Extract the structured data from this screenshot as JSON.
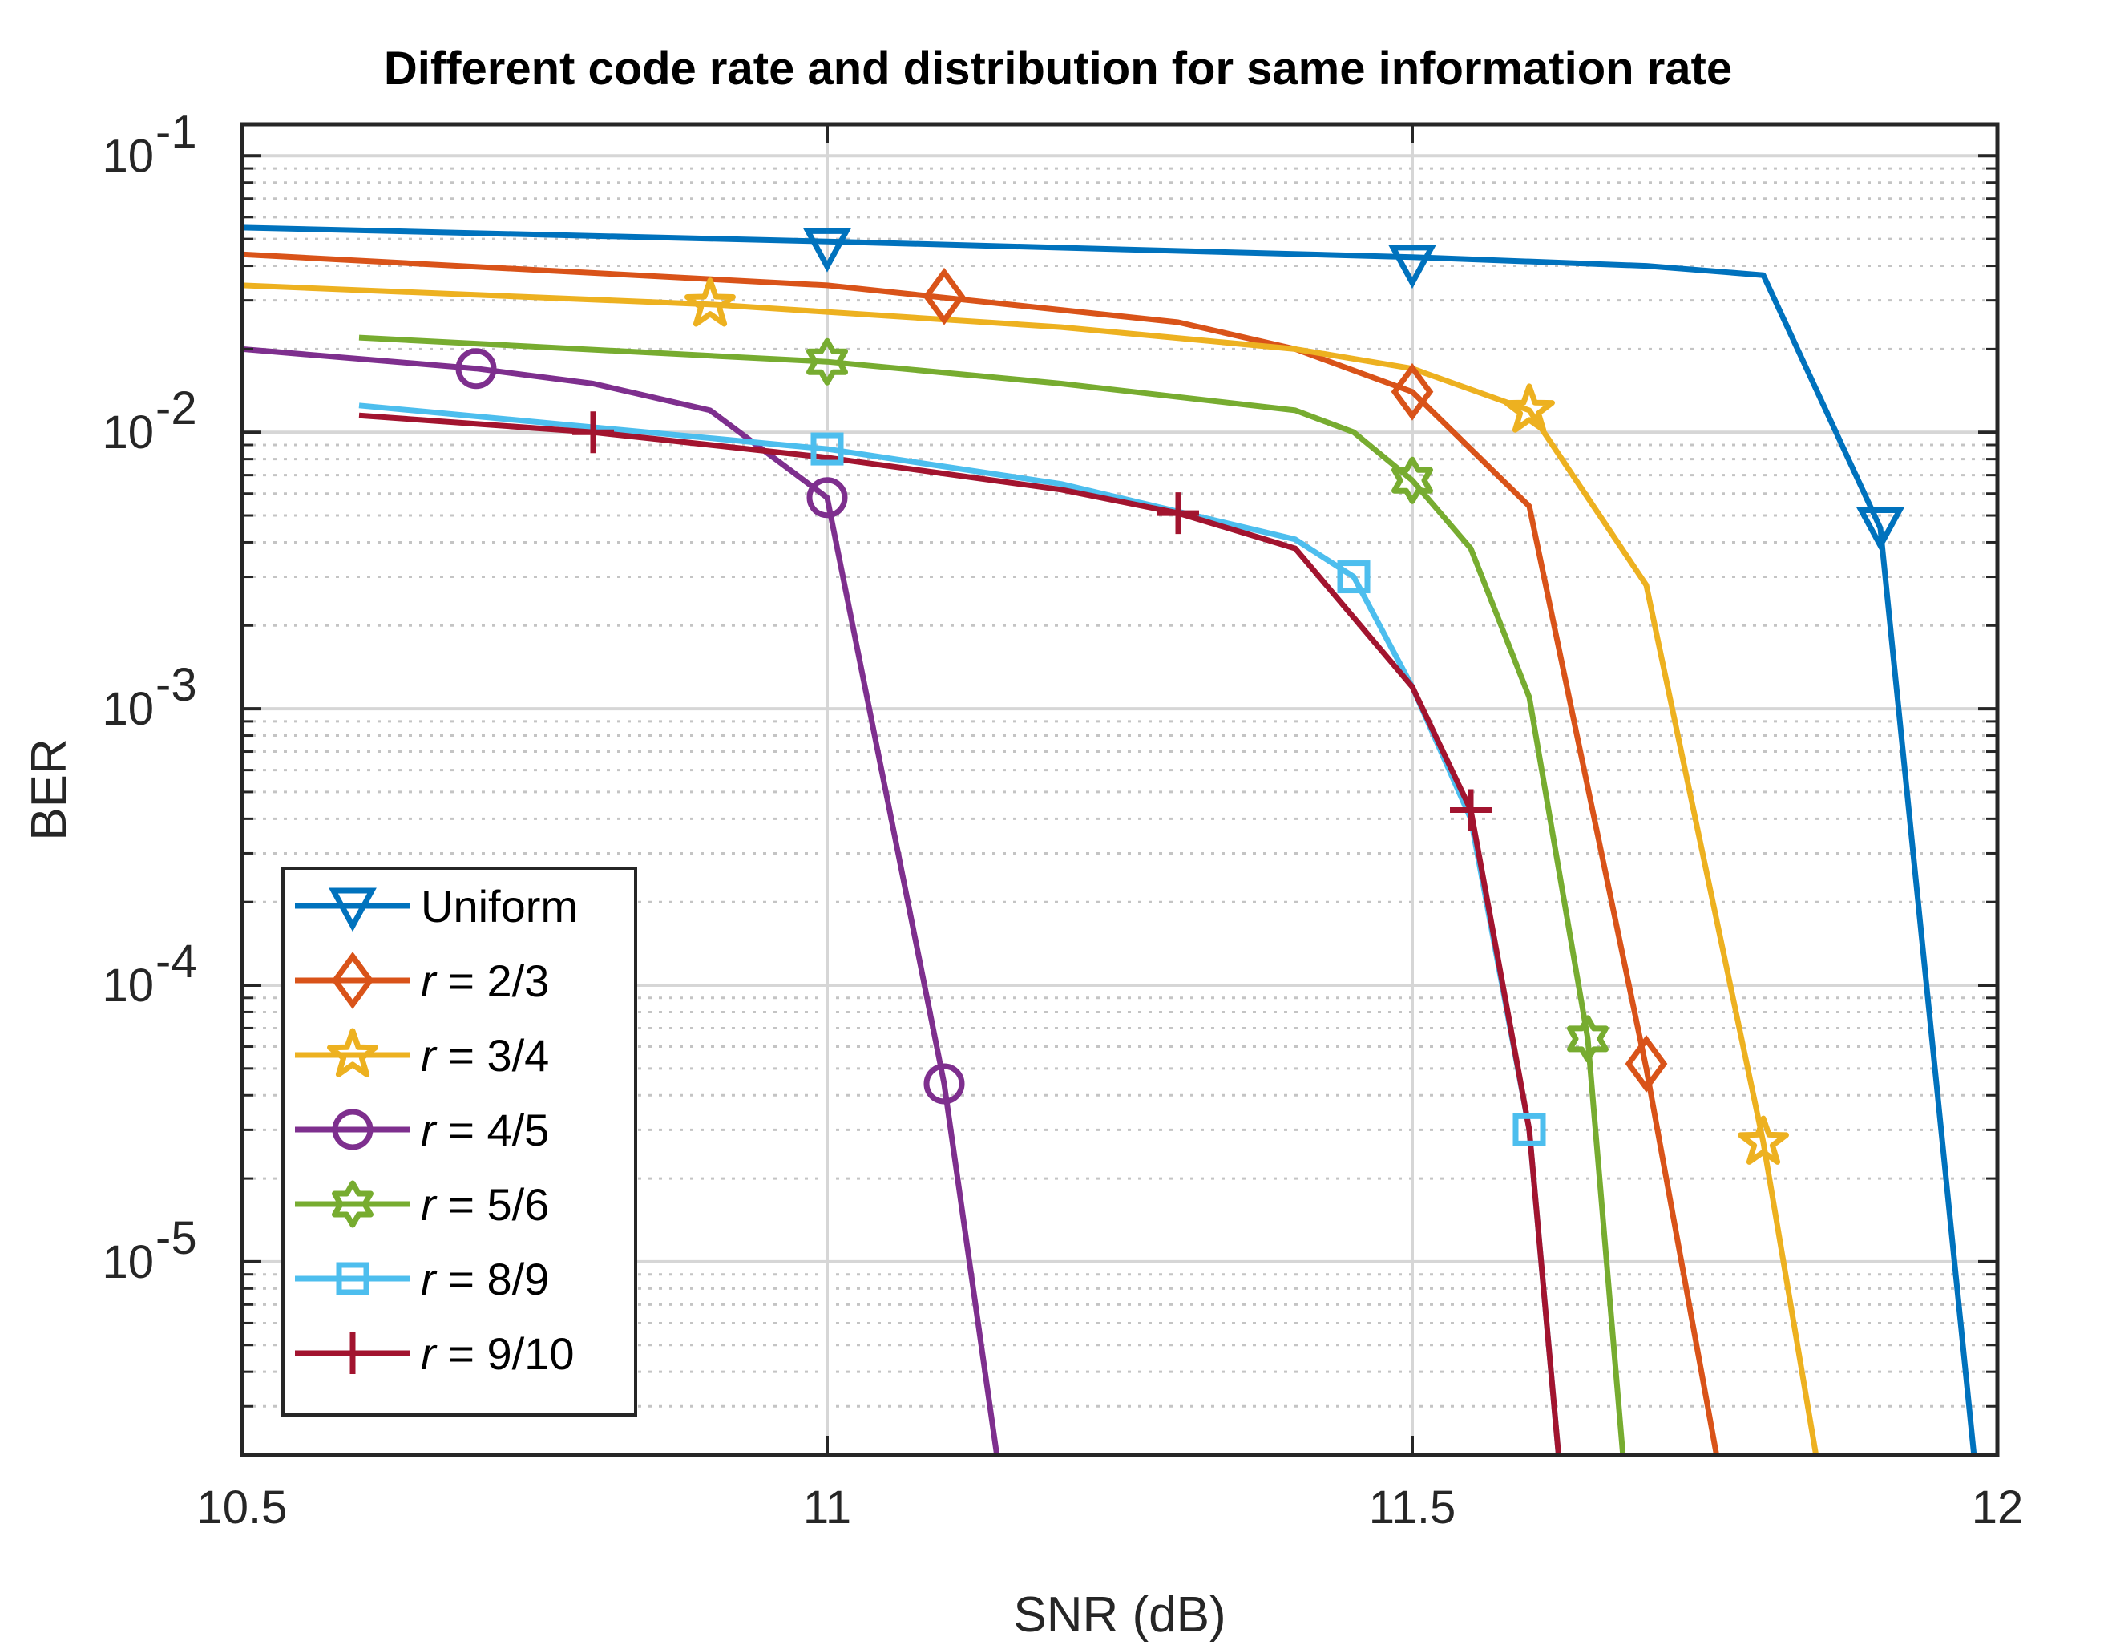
{
  "chart_data": {
    "type": "line",
    "title": "Different code rate and distribution for same information rate",
    "xlabel": "SNR (dB)",
    "ylabel": "BER",
    "xlim": [
      10.5,
      12
    ],
    "ylim": [
      2e-06,
      0.13
    ],
    "yscale": "log",
    "grid": true,
    "legend_position": "bottom-left",
    "xticks": [
      {
        "value": 10.5,
        "label": "10.5"
      },
      {
        "value": 11,
        "label": "11"
      },
      {
        "value": 11.5,
        "label": "11.5"
      },
      {
        "value": 12,
        "label": "12"
      }
    ],
    "yticks": [
      {
        "value": 0.1,
        "base": "10",
        "exp": "-1"
      },
      {
        "value": 0.01,
        "base": "10",
        "exp": "-2"
      },
      {
        "value": 0.001,
        "base": "10",
        "exp": "-3"
      },
      {
        "value": 0.0001,
        "base": "10",
        "exp": "-4"
      },
      {
        "value": 1e-05,
        "base": "10",
        "exp": "-5"
      }
    ],
    "series": [
      {
        "key": "uniform",
        "name": "Uniform",
        "label_prefix": "",
        "label_value": "Uniform",
        "color": "#0072BD",
        "marker": "triangle-down",
        "x": [
          10.5,
          11.0,
          11.5,
          11.7,
          11.8,
          11.9,
          11.98
        ],
        "y": [
          0.055,
          0.049,
          0.043,
          0.04,
          0.037,
          0.0045,
          2e-06
        ],
        "markers": [
          [
            11.0,
            0.047
          ],
          [
            11.5,
            0.041
          ],
          [
            11.9,
            0.0046
          ]
        ]
      },
      {
        "key": "r23",
        "name": "r = 2/3",
        "label_prefix": "r",
        "label_value": " = 2/3",
        "color": "#D95319",
        "marker": "diamond",
        "x": [
          10.5,
          11.0,
          11.3,
          11.4,
          11.5,
          11.6,
          11.7,
          11.76
        ],
        "y": [
          0.044,
          0.034,
          0.025,
          0.02,
          0.014,
          0.0054,
          5e-05,
          2e-06
        ],
        "markers": [
          [
            11.1,
            0.031
          ],
          [
            11.5,
            0.014
          ],
          [
            11.7,
            5.2e-05
          ]
        ]
      },
      {
        "key": "r34",
        "name": "r = 3/4",
        "label_prefix": "r",
        "label_value": " = 3/4",
        "color": "#EDB120",
        "marker": "star",
        "x": [
          10.5,
          10.9,
          11.2,
          11.4,
          11.5,
          11.6,
          11.7,
          11.8,
          11.845
        ],
        "y": [
          0.034,
          0.029,
          0.024,
          0.02,
          0.017,
          0.012,
          0.0028,
          2.7e-05,
          2e-06
        ],
        "markers": [
          [
            10.9,
            0.029
          ],
          [
            11.6,
            0.012
          ],
          [
            11.8,
            2.7e-05
          ]
        ]
      },
      {
        "key": "r45",
        "name": "r = 4/5",
        "label_prefix": "r",
        "label_value": " = 4/5",
        "color": "#7E2F8E",
        "marker": "circle",
        "x": [
          10.5,
          10.7,
          10.8,
          10.9,
          11.0,
          11.1,
          11.145
        ],
        "y": [
          0.02,
          0.017,
          0.015,
          0.012,
          0.0058,
          4.4e-05,
          2e-06
        ],
        "markers": [
          [
            10.7,
            0.017
          ],
          [
            11.0,
            0.0058
          ],
          [
            11.1,
            4.4e-05
          ]
        ]
      },
      {
        "key": "r56",
        "name": "r = 5/6",
        "label_prefix": "r",
        "label_value": " = 5/6",
        "color": "#77AC30",
        "marker": "hexagram",
        "x": [
          10.6,
          11.0,
          11.2,
          11.4,
          11.45,
          11.5,
          11.55,
          11.6,
          11.65,
          11.68
        ],
        "y": [
          0.022,
          0.018,
          0.015,
          0.012,
          0.01,
          0.0067,
          0.0038,
          0.0011,
          6.4e-05,
          2e-06
        ],
        "markers": [
          [
            11.0,
            0.018
          ],
          [
            11.5,
            0.0067
          ],
          [
            11.65,
            6.4e-05
          ]
        ]
      },
      {
        "key": "r89",
        "name": "r = 8/9",
        "label_prefix": "r",
        "label_value": " = 8/9",
        "color": "#4DBEEE",
        "marker": "square",
        "x": [
          10.6,
          11.0,
          11.2,
          11.4,
          11.45,
          11.5,
          11.55,
          11.6,
          11.625
        ],
        "y": [
          0.0125,
          0.0087,
          0.0065,
          0.0041,
          0.003,
          0.0012,
          0.0004,
          3e-05,
          2e-06
        ],
        "markers": [
          [
            11.0,
            0.0087
          ],
          [
            11.45,
            0.003
          ],
          [
            11.6,
            3e-05
          ]
        ]
      },
      {
        "key": "r910",
        "name": "r = 9/10",
        "label_prefix": "r",
        "label_value": " = 9/10",
        "color": "#A2142F",
        "marker": "plus",
        "x": [
          10.6,
          10.8,
          11.0,
          11.2,
          11.3,
          11.4,
          11.5,
          11.55,
          11.6,
          11.625
        ],
        "y": [
          0.0115,
          0.01,
          0.0081,
          0.0062,
          0.0051,
          0.0038,
          0.0012,
          0.00043,
          3e-05,
          2e-06
        ],
        "markers": [
          [
            10.8,
            0.01
          ],
          [
            11.3,
            0.0051
          ],
          [
            11.55,
            0.00043
          ]
        ]
      }
    ]
  }
}
